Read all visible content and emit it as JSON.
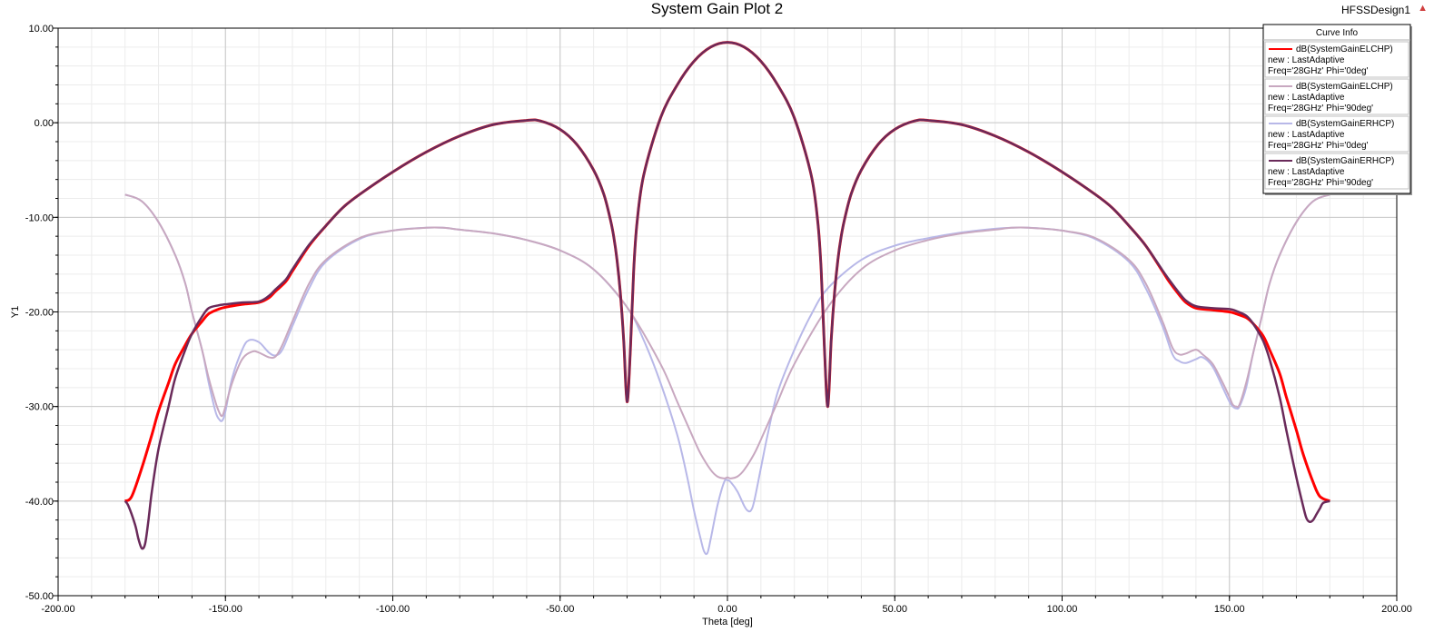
{
  "window": {
    "title": "System Gain Plot 2",
    "design_name": "HFSSDesign1"
  },
  "chart_data": {
    "type": "line",
    "title": "System Gain Plot 2",
    "xlabel": "Theta [deg]",
    "ylabel": "Y1",
    "xlim": [
      -200,
      200
    ],
    "ylim": [
      -50,
      10
    ],
    "xticks": [
      -200,
      -150,
      -100,
      -50,
      0,
      50,
      100,
      150,
      200
    ],
    "xtick_labels": [
      "-200.00",
      "-150.00",
      "-100.00",
      "-50.00",
      "0.00",
      "50.00",
      "100.00",
      "150.00",
      "200.00"
    ],
    "yticks": [
      10,
      0,
      -10,
      -20,
      -30,
      -40,
      -50
    ],
    "ytick_labels": [
      "10.00",
      "0.00",
      "-10.00",
      "-20.00",
      "-30.00",
      "-40.00",
      "-50.00"
    ],
    "grid": true,
    "legend_title": "Curve Info",
    "legend_position": "top-right",
    "series": [
      {
        "legend_lines": [
          "dB(SystemGainELCHP)",
          "new : LastAdaptive",
          "Freq='28GHz' Phi='0deg'"
        ],
        "color": "#ff0000",
        "x": [
          -180,
          -178,
          -175,
          -172,
          -170,
          -167,
          -165,
          -162,
          -160,
          -157,
          -155,
          -152,
          -150,
          -145,
          -140,
          -137,
          -135,
          -132,
          -130,
          -125,
          -120,
          -115,
          -110,
          -100,
          -90,
          -80,
          -70,
          -60,
          -56,
          -50,
          -45,
          -40,
          -37,
          -35,
          -34,
          -33,
          -32,
          -31,
          -30,
          -29,
          -28,
          -27,
          -25,
          -20,
          -15,
          -10,
          -5,
          0,
          5,
          10,
          15,
          20,
          25,
          27,
          28,
          29,
          30,
          31,
          32,
          33,
          34,
          35,
          37,
          40,
          45,
          50,
          56,
          60,
          70,
          80,
          90,
          100,
          110,
          115,
          120,
          125,
          130,
          132,
          135,
          137,
          140,
          145,
          150,
          152,
          155,
          157,
          160,
          162,
          165,
          167,
          170,
          172,
          175,
          177,
          180
        ],
        "y": [
          -40,
          -39.5,
          -36.5,
          -33,
          -30.5,
          -27.5,
          -25.5,
          -23.5,
          -22.3,
          -21,
          -20.2,
          -19.7,
          -19.5,
          -19.2,
          -19.0,
          -18.5,
          -17.8,
          -16.8,
          -15.7,
          -13.0,
          -10.9,
          -9.0,
          -7.6,
          -5.2,
          -3.1,
          -1.4,
          -0.2,
          0.25,
          0.2,
          -0.7,
          -2.3,
          -5.0,
          -7.5,
          -10.2,
          -12.0,
          -14.5,
          -18,
          -23,
          -29.5,
          -24,
          -15.5,
          -10.5,
          -5.5,
          0.5,
          4.0,
          6.5,
          8.0,
          8.5,
          8.0,
          6.5,
          4.0,
          0.5,
          -5.5,
          -10.5,
          -15.5,
          -24,
          -30,
          -23,
          -18,
          -14.5,
          -12.0,
          -10.2,
          -7.5,
          -5.0,
          -2.3,
          -0.7,
          0.2,
          0.25,
          -0.2,
          -1.4,
          -3.1,
          -5.2,
          -7.6,
          -9.0,
          -10.9,
          -13.0,
          -15.7,
          -16.8,
          -18.2,
          -19.0,
          -19.6,
          -19.8,
          -20.0,
          -20.2,
          -20.6,
          -21.2,
          -22.5,
          -24,
          -26.5,
          -29,
          -32.5,
          -35,
          -38,
          -39.5,
          -40
        ]
      },
      {
        "legend_lines": [
          "dB(SystemGainELCHP)",
          "new : LastAdaptive",
          "Freq='28GHz' Phi='90deg'"
        ],
        "color": "#c8a8c0",
        "x": [
          -180,
          -175,
          -170,
          -165,
          -162,
          -160,
          -157,
          -155,
          -153,
          -152,
          -151,
          -150,
          -148,
          -145,
          -142,
          -140,
          -137,
          -135,
          -133,
          -130,
          -125,
          -120,
          -110,
          -100,
          -90,
          -85,
          -80,
          -70,
          -60,
          -50,
          -40,
          -30,
          -20,
          -15,
          -10,
          -8,
          -5,
          -3,
          -1,
          0,
          1,
          3,
          5,
          8,
          10,
          15,
          20,
          30,
          40,
          50,
          60,
          70,
          80,
          85,
          90,
          100,
          110,
          120,
          125,
          130,
          133,
          135,
          137,
          140,
          142,
          145,
          148,
          150,
          151,
          152,
          153,
          155,
          157,
          160,
          162,
          165,
          170,
          175,
          180
        ],
        "y": [
          -7.6,
          -8.3,
          -10.5,
          -14.0,
          -17.0,
          -20.0,
          -24.0,
          -27.0,
          -29.5,
          -30.5,
          -31.0,
          -30.0,
          -27.5,
          -25.0,
          -24.2,
          -24.3,
          -24.8,
          -24.7,
          -23.5,
          -21.0,
          -17.0,
          -14.5,
          -12.2,
          -11.4,
          -11.1,
          -11.1,
          -11.3,
          -11.7,
          -12.4,
          -13.5,
          -15.5,
          -19.5,
          -25.5,
          -29.5,
          -33.5,
          -35.0,
          -36.7,
          -37.4,
          -37.6,
          -37.5,
          -37.6,
          -37.4,
          -36.7,
          -35.0,
          -33.5,
          -29.5,
          -25.5,
          -19.5,
          -15.5,
          -13.5,
          -12.4,
          -11.7,
          -11.3,
          -11.1,
          -11.1,
          -11.4,
          -12.2,
          -14.5,
          -17.0,
          -21.0,
          -23.8,
          -24.5,
          -24.4,
          -24.0,
          -24.5,
          -25.5,
          -27.5,
          -29.0,
          -29.8,
          -30.0,
          -29.8,
          -27.5,
          -24.5,
          -20.0,
          -17.0,
          -14.0,
          -10.5,
          -8.3,
          -7.6
        ]
      },
      {
        "legend_lines": [
          "dB(SystemGainERHCP)",
          "new : LastAdaptive",
          "Freq='28GHz' Phi='0deg'"
        ],
        "color": "#b8b8e8",
        "x": [
          -180,
          -175,
          -170,
          -165,
          -162,
          -160,
          -157,
          -155,
          -153,
          -152,
          -151,
          -150,
          -148,
          -145,
          -143,
          -140,
          -137,
          -135,
          -133,
          -130,
          -125,
          -120,
          -110,
          -100,
          -90,
          -85,
          -80,
          -70,
          -60,
          -50,
          -40,
          -30,
          -25,
          -20,
          -15,
          -12,
          -10,
          -8,
          -7,
          -6,
          -5,
          -3,
          -1,
          0,
          1,
          3,
          5,
          6,
          7,
          8,
          10,
          12,
          15,
          20,
          25,
          30,
          40,
          50,
          60,
          70,
          80,
          85,
          90,
          100,
          110,
          120,
          125,
          130,
          133,
          135,
          137,
          140,
          142,
          145,
          148,
          150,
          151,
          152,
          153,
          155,
          157,
          160,
          162,
          165,
          170,
          175,
          180
        ],
        "y": [
          -7.6,
          -8.3,
          -10.5,
          -14.0,
          -17.0,
          -20.0,
          -24.0,
          -27.5,
          -30.5,
          -31.3,
          -31.5,
          -30.5,
          -27.0,
          -24.0,
          -23.0,
          -23.2,
          -24.3,
          -24.6,
          -24.0,
          -21.5,
          -17.5,
          -14.7,
          -12.3,
          -11.4,
          -11.1,
          -11.1,
          -11.3,
          -11.7,
          -12.4,
          -13.5,
          -15.5,
          -19.5,
          -23.0,
          -27.5,
          -33.0,
          -37.5,
          -41.0,
          -44.0,
          -45.3,
          -45.5,
          -44.0,
          -40.5,
          -38.0,
          -37.8,
          -38.0,
          -39.0,
          -40.5,
          -41.0,
          -41.0,
          -40.0,
          -36.5,
          -33.0,
          -28.5,
          -24.0,
          -20.3,
          -17.5,
          -14.5,
          -13.0,
          -12.2,
          -11.6,
          -11.2,
          -11.1,
          -11.1,
          -11.4,
          -12.3,
          -14.7,
          -17.5,
          -21.5,
          -24.5,
          -25.2,
          -25.4,
          -25.0,
          -24.8,
          -25.8,
          -28.0,
          -29.5,
          -30.0,
          -30.2,
          -30.0,
          -28.0,
          -24.5,
          -20.0,
          -17.0,
          -14.0,
          -10.5,
          -8.3,
          -7.6
        ]
      },
      {
        "legend_lines": [
          "dB(SystemGainERHCP)",
          "new : LastAdaptive",
          "Freq='28GHz' Phi='90deg'"
        ],
        "color": "#6a2a5a",
        "x": [
          -180,
          -179,
          -177,
          -176,
          -175,
          -174,
          -173,
          -172,
          -170,
          -167,
          -165,
          -162,
          -160,
          -157,
          -155,
          -152,
          -150,
          -145,
          -140,
          -137,
          -135,
          -132,
          -130,
          -125,
          -120,
          -115,
          -110,
          -100,
          -90,
          -80,
          -70,
          -60,
          -56,
          -50,
          -45,
          -40,
          -37,
          -35,
          -34,
          -33,
          -32,
          -31,
          -30,
          -29,
          -28,
          -27,
          -25,
          -20,
          -15,
          -10,
          -5,
          0,
          5,
          10,
          15,
          20,
          25,
          27,
          28,
          29,
          30,
          31,
          32,
          33,
          34,
          35,
          37,
          40,
          45,
          50,
          56,
          60,
          70,
          80,
          90,
          100,
          110,
          115,
          120,
          125,
          130,
          132,
          135,
          137,
          140,
          145,
          150,
          152,
          155,
          157,
          160,
          162,
          165,
          167,
          170,
          172,
          173,
          174,
          175,
          176,
          177,
          178,
          180
        ],
        "y": [
          -40,
          -40.5,
          -42.5,
          -44,
          -45,
          -44.5,
          -42,
          -39,
          -34.5,
          -30,
          -27,
          -24,
          -22.3,
          -20.5,
          -19.6,
          -19.3,
          -19.2,
          -19.0,
          -18.9,
          -18.3,
          -17.6,
          -16.6,
          -15.5,
          -12.9,
          -10.9,
          -9.0,
          -7.6,
          -5.2,
          -3.1,
          -1.4,
          -0.2,
          0.25,
          0.2,
          -0.7,
          -2.3,
          -5.0,
          -7.5,
          -10.2,
          -12.0,
          -14.5,
          -18,
          -23,
          -29.5,
          -24,
          -15.5,
          -10.5,
          -5.5,
          0.5,
          4.0,
          6.5,
          8.0,
          8.5,
          8.0,
          6.5,
          4.0,
          0.5,
          -5.5,
          -10.5,
          -15.5,
          -24,
          -30,
          -23,
          -18,
          -14.5,
          -12.0,
          -10.2,
          -7.5,
          -5.0,
          -2.3,
          -0.7,
          0.2,
          0.25,
          -0.2,
          -1.4,
          -3.1,
          -5.2,
          -7.6,
          -9.0,
          -10.9,
          -13.0,
          -15.6,
          -16.6,
          -18.0,
          -18.8,
          -19.4,
          -19.6,
          -19.7,
          -19.9,
          -20.4,
          -21.2,
          -23.0,
          -25.0,
          -29.0,
          -32.5,
          -37.5,
          -40.5,
          -41.8,
          -42.2,
          -42.0,
          -41.4,
          -40.8,
          -40.2,
          -40
        ]
      }
    ]
  }
}
